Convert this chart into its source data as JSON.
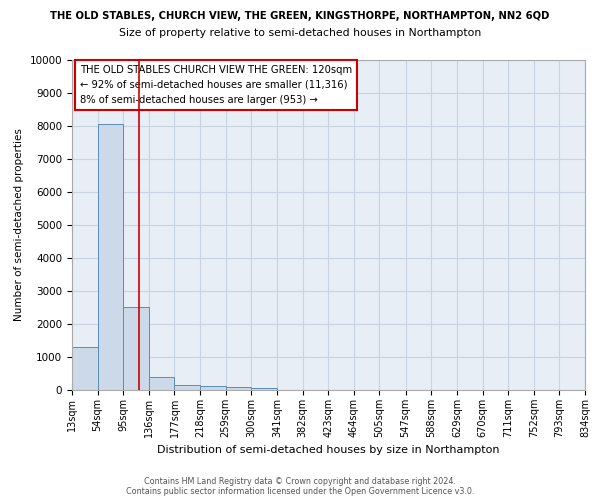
{
  "title_top": "THE OLD STABLES, CHURCH VIEW, THE GREEN, KINGSTHORPE, NORTHAMPTON, NN2 6QD",
  "title_sub": "Size of property relative to semi-detached houses in Northampton",
  "xlabel": "Distribution of semi-detached houses by size in Northampton",
  "ylabel": "Number of semi-detached properties",
  "footer1": "Contains HM Land Registry data © Crown copyright and database right 2024.",
  "footer2": "Contains public sector information licensed under the Open Government Licence v3.0.",
  "bin_edges": [
    13,
    54,
    95,
    136,
    177,
    218,
    259,
    300,
    341,
    382,
    423,
    464,
    505,
    547,
    588,
    629,
    670,
    711,
    752,
    793,
    834
  ],
  "bar_heights": [
    1300,
    8050,
    2520,
    390,
    165,
    115,
    80,
    50,
    0,
    0,
    0,
    0,
    0,
    0,
    0,
    0,
    0,
    0,
    0,
    0
  ],
  "bar_color": "#ccd9e8",
  "bar_edge_color": "#5b8db8",
  "grid_color": "#c8d4e4",
  "background_color": "#e8eef6",
  "property_size": 120,
  "property_label": "THE OLD STABLES CHURCH VIEW THE GREEN: 120sqm",
  "annotation_line1": "← 92% of semi-detached houses are smaller (11,316)",
  "annotation_line2": "8% of semi-detached houses are larger (953) →",
  "vline_color": "#cc0000",
  "annotation_border_color": "#cc0000",
  "ylim": [
    0,
    10000
  ],
  "yticks": [
    0,
    1000,
    2000,
    3000,
    4000,
    5000,
    6000,
    7000,
    8000,
    9000,
    10000
  ]
}
